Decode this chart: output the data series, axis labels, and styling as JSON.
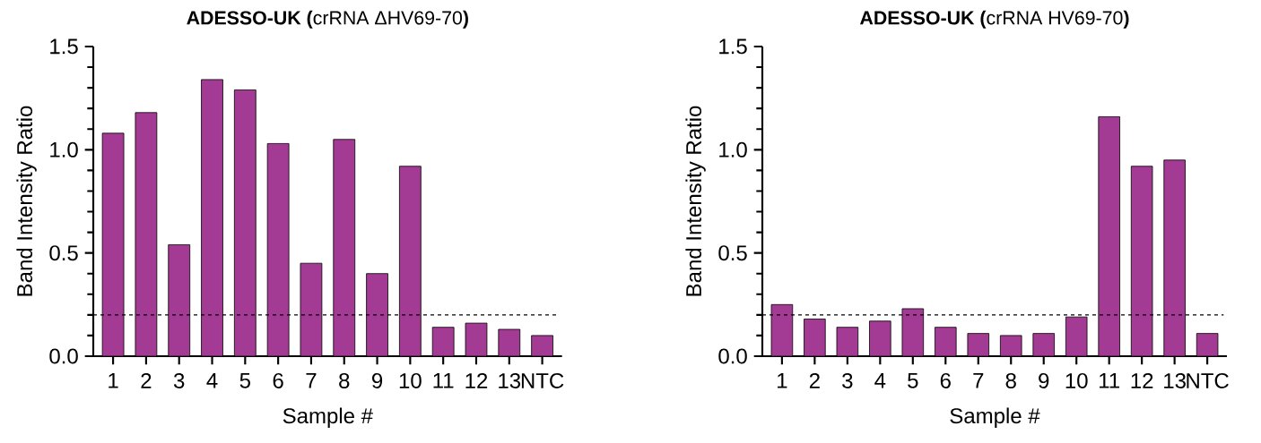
{
  "chart_data": [
    {
      "type": "bar",
      "title": "**ADESSO-UK (**crRNA ΔHV69-70**)**",
      "xlabel": "Sample #",
      "ylabel": "Band Intensity Ratio",
      "categories": [
        "1",
        "2",
        "3",
        "4",
        "5",
        "6",
        "7",
        "8",
        "9",
        "10",
        "11",
        "12",
        "13",
        "NTC"
      ],
      "values": [
        1.08,
        1.18,
        0.54,
        1.34,
        1.29,
        1.03,
        0.45,
        1.05,
        0.4,
        0.92,
        0.14,
        0.16,
        0.13,
        0.1
      ],
      "color": "#a33a93",
      "ylim": [
        0,
        1.5
      ],
      "yticks": [
        {
          "value": 0,
          "label": "0.0"
        },
        {
          "value": 0.1,
          "label": null
        },
        {
          "value": 0.2,
          "label": null
        },
        {
          "value": 0.3,
          "label": null
        },
        {
          "value": 0.4,
          "label": null
        },
        {
          "value": 0.5,
          "label": "0.5"
        },
        {
          "value": 0.6,
          "label": null
        },
        {
          "value": 0.7,
          "label": null
        },
        {
          "value": 0.8,
          "label": null
        },
        {
          "value": 0.9,
          "label": null
        },
        {
          "value": 1,
          "label": "1.0"
        },
        {
          "value": 1.1,
          "label": null
        },
        {
          "value": 1.2,
          "label": null
        },
        {
          "value": 1.3,
          "label": null
        },
        {
          "value": 1.4,
          "label": null
        },
        {
          "value": 1.5,
          "label": "1.5"
        }
      ],
      "ref_lines": [
        {
          "axis": "y",
          "value": 0.2,
          "color": "#000000",
          "line_style": "dashed"
        }
      ]
    },
    {
      "type": "bar",
      "title": "**ADESSO-UK (**crRNA HV69-70**)**",
      "xlabel": "Sample #",
      "ylabel": "Band Intensity Ratio",
      "categories": [
        "1",
        "2",
        "3",
        "4",
        "5",
        "6",
        "7",
        "8",
        "9",
        "10",
        "11",
        "12",
        "13",
        "NTC"
      ],
      "values": [
        0.25,
        0.18,
        0.14,
        0.17,
        0.23,
        0.14,
        0.11,
        0.1,
        0.11,
        0.19,
        1.16,
        0.92,
        0.95,
        0.11
      ],
      "color": "#a33a93",
      "ylim": [
        0,
        1.5
      ],
      "yticks": [
        {
          "value": 0,
          "label": "0.0"
        },
        {
          "value": 0.1,
          "label": null
        },
        {
          "value": 0.2,
          "label": null
        },
        {
          "value": 0.3,
          "label": null
        },
        {
          "value": 0.4,
          "label": null
        },
        {
          "value": 0.5,
          "label": "0.5"
        },
        {
          "value": 0.6,
          "label": null
        },
        {
          "value": 0.7,
          "label": null
        },
        {
          "value": 0.8,
          "label": null
        },
        {
          "value": 0.9,
          "label": null
        },
        {
          "value": 1,
          "label": "1.0"
        },
        {
          "value": 1.1,
          "label": null
        },
        {
          "value": 1.2,
          "label": null
        },
        {
          "value": 1.3,
          "label": null
        },
        {
          "value": 1.4,
          "label": null
        },
        {
          "value": 1.5,
          "label": "1.5"
        }
      ],
      "ref_lines": [
        {
          "axis": "y",
          "value": 0.2,
          "color": "#000000",
          "line_style": "dashed"
        }
      ]
    }
  ]
}
